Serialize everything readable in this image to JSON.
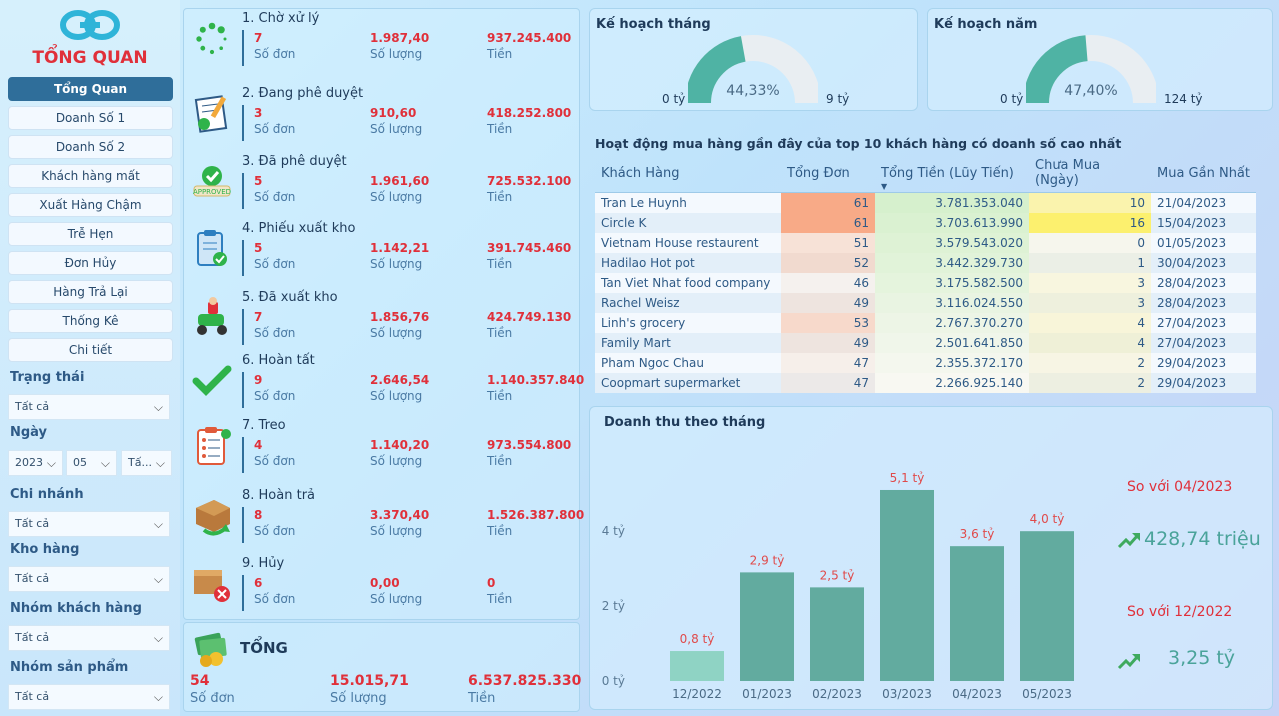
{
  "sidebar": {
    "title": "TỔNG QUAN",
    "nav": [
      "Tổng Quan",
      "Doanh Số 1",
      "Doanh Số 2",
      "Khách hàng mất",
      "Xuất Hàng Chậm",
      "Trễ Hẹn",
      "Đơn Hủy",
      "Hàng Trả Lại",
      "Thống Kê",
      "Chi tiết"
    ],
    "filters": {
      "status_label": "Trạng thái",
      "status_value": "Tất cả",
      "date_label": "Ngày",
      "year": "2023",
      "month": "05",
      "day": "Tấ...",
      "branch_label": "Chi nhánh",
      "branch_value": "Tất cả",
      "warehouse_label": "Kho hàng",
      "warehouse_value": "Tất cả",
      "customer_group_label": "Nhóm khách hàng",
      "customer_group_value": "Tất cả",
      "product_group_label": "Nhóm sản phẩm",
      "product_group_value": "Tất cả"
    }
  },
  "labels": {
    "orders": "Số đơn",
    "qty": "Số lượng",
    "money": "Tiền"
  },
  "statuses": [
    {
      "title": "1. Chờ xử lý",
      "orders": "7",
      "qty": "1.987,40",
      "money": "937.245.400",
      "icon": "spinner-icon"
    },
    {
      "title": "2. Đang phê duyệt",
      "orders": "3",
      "qty": "910,60",
      "money": "418.252.800",
      "icon": "signing-document-icon"
    },
    {
      "title": "3. Đã phê duyệt",
      "orders": "5",
      "qty": "1.961,60",
      "money": "725.532.100",
      "icon": "approved-stamp-icon"
    },
    {
      "title": "4. Phiếu xuất kho",
      "orders": "5",
      "qty": "1.142,21",
      "money": "391.745.460",
      "icon": "clipboard-check-icon"
    },
    {
      "title": "5. Đã xuất kho",
      "orders": "7",
      "qty": "1.856,76",
      "money": "424.749.130",
      "icon": "delivery-scooter-icon"
    },
    {
      "title": "6. Hoàn tất",
      "orders": "9",
      "qty": "2.646,54",
      "money": "1.140.357.840",
      "icon": "checkmark-icon"
    },
    {
      "title": "7. Treo",
      "orders": "4",
      "qty": "1.140,20",
      "money": "973.554.800",
      "icon": "checklist-icon"
    },
    {
      "title": "8. Hoàn trả",
      "orders": "8",
      "qty": "3.370,40",
      "money": "1.526.387.800",
      "icon": "return-box-icon"
    },
    {
      "title": "9. Hủy",
      "orders": "6",
      "qty": "0,00",
      "money": "0",
      "icon": "cancel-box-icon"
    }
  ],
  "total": {
    "title": "TỔNG",
    "orders": "54",
    "qty": "15.015,71",
    "money": "6.537.825.330"
  },
  "gauges": [
    {
      "title": "Kế hoạch tháng",
      "percent_label": "44,33%",
      "fraction": 0.4433,
      "min": "0 tỷ",
      "max": "9 tỷ"
    },
    {
      "title": "Kế hoạch năm",
      "percent_label": "47,40%",
      "fraction": 0.474,
      "min": "0 tỷ",
      "max": "124 tỷ"
    }
  ],
  "table": {
    "title": "Hoạt động mua hàng gần đây của top 10 khách hàng có doanh số cao nhất",
    "headers": [
      "Khách Hàng",
      "Tổng Đơn",
      "Tổng Tiền (Lũy Tiến)",
      "Chưa Mua (Ngày)",
      "Mua Gần Nhất"
    ],
    "rows": [
      [
        "Tran Le Huynh",
        "61",
        "3.781.353.040",
        "10",
        "21/04/2023"
      ],
      [
        "Circle K",
        "61",
        "3.703.613.990",
        "16",
        "15/04/2023"
      ],
      [
        "Vietnam House restaurent",
        "51",
        "3.579.543.020",
        "0",
        "01/05/2023"
      ],
      [
        "Hadilao Hot pot",
        "52",
        "3.442.329.730",
        "1",
        "30/04/2023"
      ],
      [
        "Tan Viet Nhat food company",
        "46",
        "3.175.582.500",
        "3",
        "28/04/2023"
      ],
      [
        "Rachel Weisz",
        "49",
        "3.116.024.550",
        "3",
        "28/04/2023"
      ],
      [
        "Linh's grocery",
        "53",
        "2.767.370.270",
        "4",
        "27/04/2023"
      ],
      [
        "Family Mart",
        "49",
        "2.501.641.850",
        "4",
        "27/04/2023"
      ],
      [
        "Pham Ngoc Chau",
        "47",
        "2.355.372.170",
        "2",
        "29/04/2023"
      ],
      [
        "Coopmart supermarket",
        "47",
        "2.266.925.140",
        "2",
        "29/04/2023"
      ]
    ]
  },
  "chart_data": {
    "type": "bar",
    "title": "Doanh thu theo tháng",
    "categories": [
      "12/2022",
      "01/2023",
      "02/2023",
      "03/2023",
      "04/2023",
      "05/2023"
    ],
    "values": [
      0.8,
      2.9,
      2.5,
      5.1,
      3.6,
      4.0
    ],
    "data_labels": [
      "0,8 tỷ",
      "2,9 tỷ",
      "2,5 tỷ",
      "5,1 tỷ",
      "3,6 tỷ",
      "4,0 tỷ"
    ],
    "y_ticks": [
      {
        "v": 0,
        "label": "0 tỷ"
      },
      {
        "v": 2,
        "label": "2 tỷ"
      },
      {
        "v": 4,
        "label": "4 tỷ"
      }
    ],
    "ylim": [
      0,
      5.5
    ],
    "colors": {
      "bar": "#62ab9f",
      "first_bar": "#8fd3c4",
      "label": "#e04a4a"
    }
  },
  "comparisons": [
    {
      "label": "So với 04/2023",
      "value": "428,74 triệu"
    },
    {
      "label": "So với 12/2022",
      "value": "3,25 tỷ"
    }
  ]
}
